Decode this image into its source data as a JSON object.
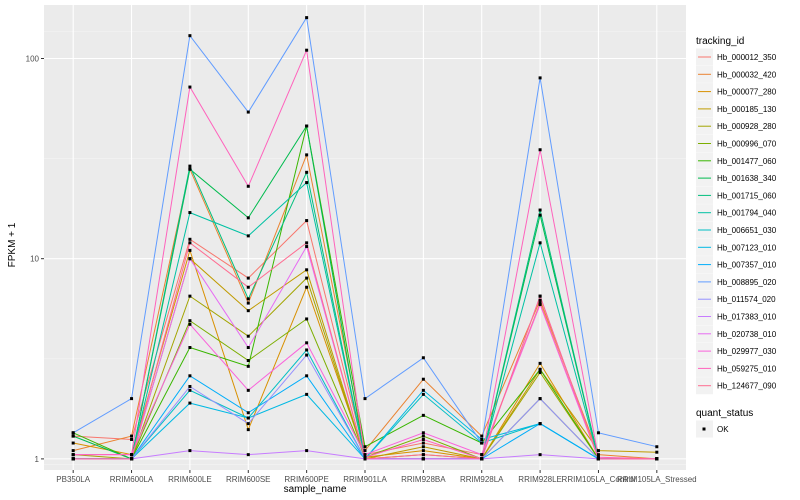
{
  "chart_data": {
    "type": "line",
    "y_scale": "log10",
    "xlabel": "sample_name",
    "ylabel": "FPKM + 1",
    "ylim": [
      0.88,
      185
    ],
    "y_ticks": [
      1,
      10,
      100
    ],
    "y_tick_labels": [
      "1",
      "10",
      "100"
    ],
    "grid": true,
    "legend_position": "right",
    "categories": [
      "PB350LA",
      "RRIM600LA",
      "RRIM600LE",
      "RRIM600SE",
      "RRIM600PE",
      "RRIM901LA",
      "RRIM928BA",
      "RRIM928LA",
      "RRIM928LE",
      "RRIM105LA_Control",
      "RRIM105LA_Stressed"
    ],
    "category_labels": [
      "PB350LA",
      "RRIM600LA",
      "RRIM600LE",
      "RRIM600SE",
      "RRIM600PE",
      "RRIM901LA",
      "RRIM928BA",
      "RRIM928LA",
      "RRIM928LE",
      "RRIM105LA_Control",
      "RRIM105LA_Stressed"
    ],
    "legend_title": "tracking_id",
    "series": [
      {
        "name": "Hb_000012_350",
        "color": "#F8766D",
        "values": [
          1.3,
          1.25,
          12.5,
          8.0,
          15.5,
          1.05,
          1.2,
          1.05,
          6.0,
          1.0,
          1.0
        ]
      },
      {
        "name": "Hb_000032_420",
        "color": "#EA8331",
        "values": [
          1.1,
          1.3,
          28,
          6.0,
          33,
          1.1,
          2.5,
          1.3,
          6.2,
          1.05,
          1.0
        ]
      },
      {
        "name": "Hb_000077_280",
        "color": "#D89000",
        "values": [
          1.2,
          1.05,
          11,
          1.4,
          7.2,
          1.02,
          1.1,
          1.0,
          3.0,
          1.0,
          1.0
        ]
      },
      {
        "name": "Hb_000185_130",
        "color": "#C09B00",
        "values": [
          1.0,
          1.0,
          10,
          5.5,
          8.8,
          1.0,
          1.15,
          1.0,
          2.8,
          1.1,
          1.08
        ]
      },
      {
        "name": "Hb_000928_280",
        "color": "#A3A500",
        "values": [
          1.05,
          1.0,
          6.5,
          4.1,
          8.0,
          1.0,
          1.05,
          1.0,
          2.7,
          1.0,
          1.0
        ]
      },
      {
        "name": "Hb_000996_070",
        "color": "#7CAE00",
        "values": [
          1.0,
          1.0,
          4.9,
          3.1,
          5.0,
          1.02,
          1.3,
          1.0,
          2.0,
          1.0,
          1.0
        ]
      },
      {
        "name": "Hb_001477_060",
        "color": "#39B600",
        "values": [
          1.35,
          1.0,
          3.6,
          2.9,
          46,
          1.15,
          1.65,
          1.2,
          2.8,
          1.0,
          1.0
        ]
      },
      {
        "name": "Hb_001638_340",
        "color": "#00BB4E",
        "values": [
          1.3,
          1.0,
          28,
          16,
          46,
          1.0,
          1.0,
          1.0,
          16.5,
          1.0,
          1.0
        ]
      },
      {
        "name": "Hb_001715_060",
        "color": "#00BF7D",
        "values": [
          1.0,
          1.0,
          29,
          6.3,
          27,
          1.0,
          1.0,
          1.0,
          17.5,
          1.0,
          1.0
        ]
      },
      {
        "name": "Hb_001794_040",
        "color": "#00C1A3",
        "values": [
          1.0,
          1.0,
          17,
          13,
          24,
          1.0,
          1.0,
          1.0,
          12,
          1.0,
          1.0
        ]
      },
      {
        "name": "Hb_006651_030",
        "color": "#00BFC4",
        "values": [
          1.0,
          1.0,
          2.2,
          1.6,
          3.5,
          1.0,
          2.1,
          1.2,
          1.5,
          1.0,
          1.0
        ]
      },
      {
        "name": "Hb_007123_010",
        "color": "#00B9E3",
        "values": [
          1.0,
          1.0,
          1.9,
          1.6,
          2.1,
          1.0,
          2.2,
          1.25,
          1.5,
          1.0,
          1.0
        ]
      },
      {
        "name": "Hb_007357_010",
        "color": "#00ADFA",
        "values": [
          1.0,
          1.0,
          2.6,
          1.7,
          2.6,
          1.0,
          1.0,
          1.0,
          1.5,
          1.0,
          1.0
        ]
      },
      {
        "name": "Hb_008895_020",
        "color": "#619CFF",
        "values": [
          1.35,
          2.0,
          130,
          54,
          160,
          2.0,
          3.2,
          1.2,
          80,
          1.35,
          1.15
        ]
      },
      {
        "name": "Hb_011574_020",
        "color": "#9590FF",
        "values": [
          1.0,
          1.0,
          2.3,
          1.5,
          3.3,
          1.0,
          1.0,
          1.0,
          2.0,
          1.0,
          1.0
        ]
      },
      {
        "name": "Hb_017383_010",
        "color": "#C77CFF",
        "values": [
          1.0,
          1.0,
          1.1,
          1.05,
          1.1,
          1.0,
          1.0,
          1.0,
          1.05,
          1.0,
          1.0
        ]
      },
      {
        "name": "Hb_020738_010",
        "color": "#E76BF3",
        "values": [
          1.0,
          1.0,
          10,
          3.6,
          11.5,
          1.0,
          1.0,
          1.0,
          6.5,
          1.0,
          1.0
        ]
      },
      {
        "name": "Hb_029977_030",
        "color": "#FA62DB",
        "values": [
          1.05,
          1.05,
          4.7,
          2.2,
          3.8,
          1.05,
          1.35,
          1.05,
          5.9,
          1.0,
          1.0
        ]
      },
      {
        "name": "Hb_059275_010",
        "color": "#FF62BC",
        "values": [
          1.05,
          1.05,
          72,
          23,
          110,
          1.02,
          1.25,
          1.0,
          35,
          1.02,
          1.0
        ]
      },
      {
        "name": "Hb_124677_090",
        "color": "#FF6C91",
        "values": [
          1.0,
          1.0,
          12,
          7.2,
          12,
          1.0,
          1.05,
          1.0,
          6.5,
          1.0,
          1.0
        ]
      }
    ],
    "legend2_title": "quant_status",
    "legend2_items": [
      "OK"
    ]
  }
}
